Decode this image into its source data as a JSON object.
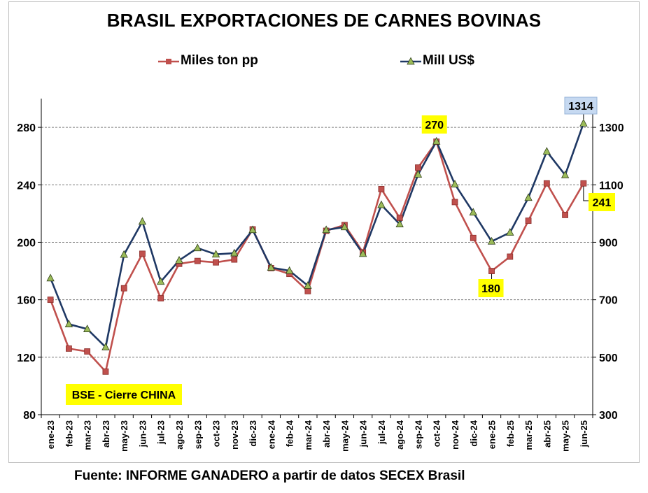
{
  "chart_data": {
    "type": "line",
    "title": "BRASIL EXPORTACIONES DE CARNES BOVINAS",
    "categories": [
      "ene-23",
      "feb-23",
      "mar-23",
      "abr-23",
      "may-23",
      "jun-23",
      "jul-23",
      "ago-23",
      "sep-23",
      "oct-23",
      "nov-23",
      "dic-23",
      "ene-24",
      "feb-24",
      "mar-24",
      "abr-24",
      "may-24",
      "jun-24",
      "jul-24",
      "ago-24",
      "sep-24",
      "oct-24",
      "nov-24",
      "dic-24",
      "ene-25",
      "feb-25",
      "mar-25",
      "abr-25",
      "may-25",
      "jun-25"
    ],
    "series": [
      {
        "name": "Miles ton pp",
        "axis": "left",
        "color": "#c0504d",
        "marker": "square",
        "values": [
          160,
          126,
          124,
          110,
          168,
          192,
          161,
          185,
          187,
          186,
          188,
          209,
          182,
          178,
          166,
          208,
          212,
          193,
          237,
          217,
          252,
          270,
          228,
          203,
          180,
          190,
          215,
          241,
          219,
          241
        ]
      },
      {
        "name": "Mill US$",
        "axis": "right",
        "color": "#1f3864",
        "marker": "triangle",
        "marker_color": "#9bbb59",
        "values": [
          775,
          615,
          598,
          535,
          857,
          972,
          763,
          837,
          880,
          858,
          862,
          943,
          812,
          801,
          749,
          943,
          953,
          860,
          1030,
          963,
          1136,
          1251,
          1102,
          1004,
          903,
          934,
          1055,
          1216,
          1134,
          1314
        ]
      }
    ],
    "y_left": {
      "min": 80,
      "max": 300,
      "ticks": [
        80,
        120,
        160,
        200,
        240,
        280
      ]
    },
    "y_right": {
      "min": 300,
      "max": 1400,
      "ticks": [
        300,
        500,
        700,
        900,
        1100,
        1300
      ]
    },
    "grid": true,
    "legend_position": "top",
    "annotations": [
      {
        "text": "270",
        "series": 0,
        "index": 21,
        "style": "yellow"
      },
      {
        "text": "180",
        "series": 0,
        "index": 24,
        "style": "yellow"
      },
      {
        "text": "241",
        "series": 0,
        "index": 29,
        "style": "yellow"
      },
      {
        "text": "1314",
        "series": 1,
        "index": 29,
        "style": "blue"
      },
      {
        "text": "BSE - Cierre CHINA",
        "style": "yellow"
      }
    ]
  },
  "source": "Fuente: INFORME GANADERO  a partir de datos SECEX Brasil"
}
